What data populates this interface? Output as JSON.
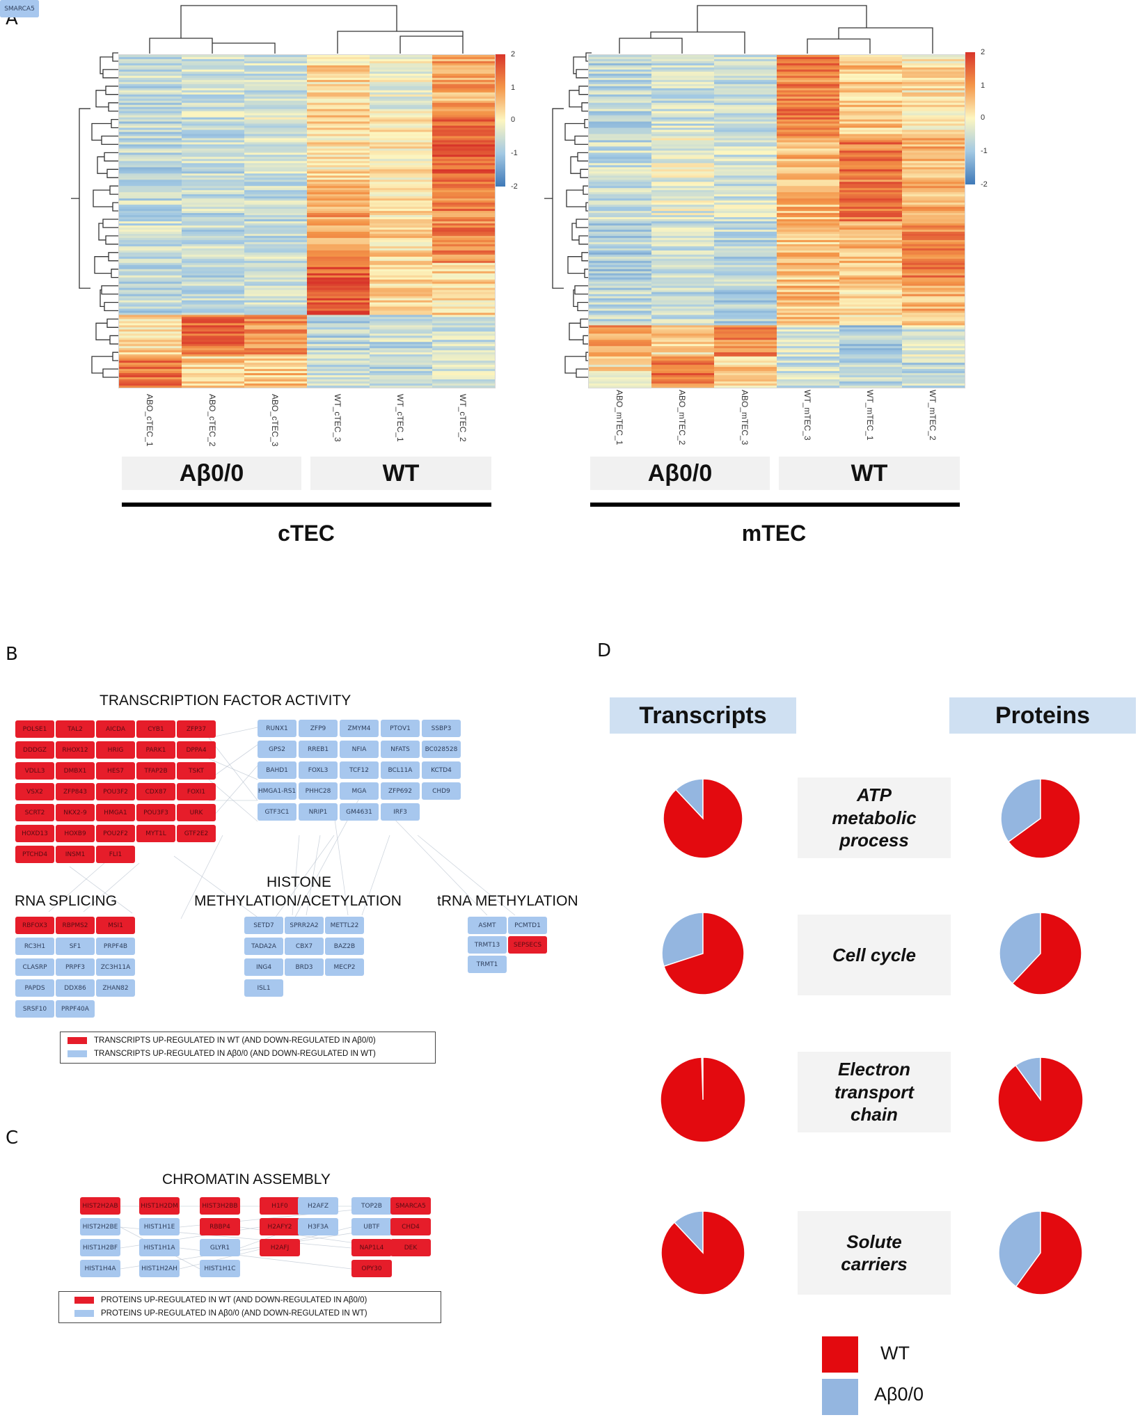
{
  "panels": {
    "a": "A",
    "b": "B",
    "c": "C",
    "d": "D"
  },
  "heatmap_ctec": {
    "columns": [
      "ABO_cTEC_1",
      "ABO_cTEC_2",
      "ABO_cTEC_3",
      "WT_cTEC_3",
      "WT_cTEC_1",
      "WT_cTEC_2"
    ],
    "group_ab": "Aβ0/0",
    "group_wt": "WT",
    "title": "cTEC",
    "scale": [
      "2",
      "1",
      "0",
      "-1",
      "-2"
    ]
  },
  "heatmap_mtec": {
    "columns": [
      "ABO_mTEC_1",
      "ABO_mTEC_2",
      "ABO_mTEC_3",
      "WT_mTEC_3",
      "WT_mTEC_1",
      "WT_mTEC_2"
    ],
    "group_ab": "Aβ0/0",
    "group_wt": "WT",
    "title": "mTEC",
    "scale": [
      "2",
      "1",
      "0",
      "-1",
      "-2"
    ]
  },
  "network_b": {
    "tf_title": "TRANSCRIPTION FACTOR ACTIVITY",
    "tf_up": [
      "POLSE1",
      "TAL2",
      "AICDA",
      "CYB1",
      "ZFP37",
      "DDDGZ",
      "RHOX12",
      "HRIG",
      "PARK1",
      "DPPA4",
      "VDLL3",
      "DMBX1",
      "HES7",
      "TFAP2B",
      "TSKT",
      "VSX2",
      "ZFP843",
      "POU3F2",
      "CDX87",
      "FOXI1",
      "SCRT2",
      "NKX2-9",
      "HMGA1",
      "POU3F3",
      "URK",
      "HOXD13",
      "HOXB9",
      "POU2F2",
      "MYT1L",
      "GTF2E2",
      "PTCHD4",
      "INSM1",
      "FLI1"
    ],
    "tf_down": [
      "RUNX1",
      "ZFP9",
      "ZMYM4",
      "PTOV1",
      "SSBP3",
      "GPS2",
      "RREB1",
      "NFIA",
      "NFATS",
      "BC028528",
      "BAHD1",
      "FOXL3",
      "TCF12",
      "BCL11A",
      "KCTD4",
      "HMGA1-RS1",
      "PHHC28",
      "MGA",
      "ZFP692",
      "CHD9",
      "GTF3C1",
      "NRIP1",
      "GM4631",
      "IRF3"
    ],
    "splicing_title": "RNA SPLICING",
    "splicing_up": [
      "RBFOX3",
      "RBPMS2",
      "MSI1"
    ],
    "splicing_down": [
      "RC3H1",
      "SF1",
      "PRPF4B",
      "CLASRP",
      "PRPF3",
      "ZC3H11A",
      "PAPDS",
      "DDX86",
      "ZHAN82",
      "SRSF10",
      "PRPF40A"
    ],
    "histone_title_1": "HISTONE",
    "histone_title_2": "METHYLATION/ACETYLATION",
    "histone_down": [
      "SETD7",
      "SPRR2A2",
      "METTL22",
      "TADA2A",
      "CBX7",
      "BAZ2B",
      "ING4",
      "BRD3",
      "MECP2",
      "ISL1"
    ],
    "trna_title": "tRNA METHYLATION",
    "trna_down": [
      "ASMT",
      "PCMTD1",
      "TRMT13",
      "TRMT1"
    ],
    "trna_up": [
      "SEPSECS"
    ],
    "legend_up": "TRANSCRIPTS UP-REGULATED IN WT (AND DOWN-REGULATED IN Aβ0/0)",
    "legend_down": "TRANSCRIPTS UP-REGULATED IN Aβ0/0 (AND DOWN-REGULATED IN WT)"
  },
  "network_c": {
    "title": "CHROMATIN ASSEMBLY",
    "nodes": [
      {
        "label": "HIST2H2AB",
        "up": true
      },
      {
        "label": "HIST1H2DM",
        "up": true
      },
      {
        "label": "HIST3H2BB",
        "up": true
      },
      {
        "label": "H1F0",
        "up": true
      },
      {
        "label": "H2AFZ",
        "up": false
      },
      {
        "label": "TOP2B",
        "up": false
      },
      {
        "label": "SMARCA5",
        "up": true
      },
      {
        "label": "HIST2H2BE",
        "up": false
      },
      {
        "label": "HIST1H1E",
        "up": false
      },
      {
        "label": "RBBP4",
        "up": true
      },
      {
        "label": "H2AFY2",
        "up": true
      },
      {
        "label": "H3F3A",
        "up": false
      },
      {
        "label": "UBTF",
        "up": false
      },
      {
        "label": "CHD4",
        "up": true
      },
      {
        "label": "HIST1H2BF",
        "up": false
      },
      {
        "label": "HIST1H1A",
        "up": false
      },
      {
        "label": "GLYR1",
        "up": false
      },
      {
        "label": "H2AFJ",
        "up": true
      },
      {
        "label": "NAP1L4",
        "up": true
      },
      {
        "label": "DEK",
        "up": true
      },
      {
        "label": "HIST1H4A",
        "up": false
      },
      {
        "label": "HIST1H2AH",
        "up": false
      },
      {
        "label": "HIST1H1C",
        "up": false
      },
      {
        "label": "OPY30",
        "up": true
      }
    ],
    "legend_up": "PROTEINS UP-REGULATED IN WT (AND DOWN-REGULATED IN Aβ0/0)",
    "legend_down": "PROTEINS UP-REGULATED IN Aβ0/0 (AND DOWN-REGULATED IN WT)"
  },
  "chart_data": {
    "type": "pie",
    "columns": [
      "Transcripts",
      "Proteins"
    ],
    "categories": [
      "ATP metabolic process",
      "Cell cycle",
      "Electron transport chain",
      "Solute carriers"
    ],
    "category_lines": [
      [
        "ATP",
        "metabolic",
        "process"
      ],
      [
        "Cell cycle"
      ],
      [
        "Electron",
        "transport",
        "chain"
      ],
      [
        "Solute",
        "carriers"
      ]
    ],
    "series_names": [
      "WT",
      "Aβ0/0"
    ],
    "wt_fraction_transcripts": [
      0.88,
      0.7,
      0.995,
      0.88
    ],
    "wt_fraction_proteins": [
      0.65,
      0.62,
      0.9,
      0.6
    ],
    "legend": [
      "WT",
      "Aβ0/0"
    ],
    "colors": {
      "wt": "#e30a0f",
      "ab": "#94b6e0"
    }
  },
  "colors": {
    "up": "#e61d2a",
    "down": "#a7c7ee",
    "header": "#cfe0f2"
  }
}
